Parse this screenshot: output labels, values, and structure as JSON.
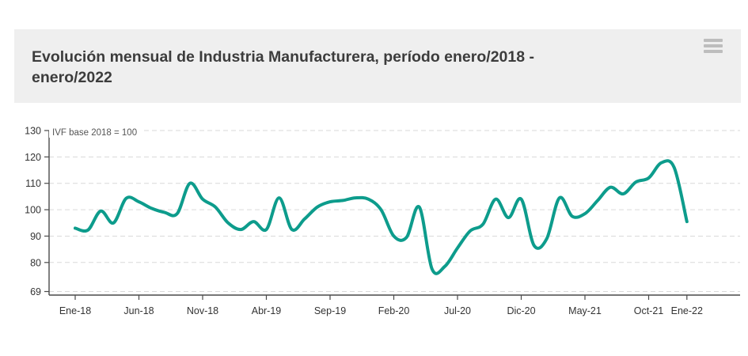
{
  "header": {
    "title_line1": "Evolución mensual de Industria Manufacturera, período enero/2018 -",
    "title_line2": "enero/2022",
    "background": "#efefef",
    "title_color": "#3c3c3c",
    "menu_icon": "hamburger-menu"
  },
  "chart_data": {
    "type": "line",
    "title": "Evolución mensual de Industria Manufacturera, período enero/2018 - enero/2022",
    "annotation": "IVF base 2018 = 100",
    "legend": "none",
    "grid": "horizontal-dashed",
    "ylim": [
      69,
      130
    ],
    "y_ticks": [
      69,
      80,
      90,
      100,
      110,
      120,
      130
    ],
    "x_tick_indices": [
      0,
      5,
      10,
      15,
      20,
      25,
      30,
      35,
      40,
      45,
      48
    ],
    "visible_x_tick_labels": [
      "Ene-18",
      "Jun-18",
      "Nov-18",
      "Abr-19",
      "Sep-19",
      "Feb-20",
      "Jul-20",
      "Dic-20",
      "May-21",
      "Oct-21",
      "Ene-22"
    ],
    "x": [
      "Ene-18",
      "Feb-18",
      "Mar-18",
      "Abr-18",
      "May-18",
      "Jun-18",
      "Jul-18",
      "Ago-18",
      "Sep-18",
      "Oct-18",
      "Nov-18",
      "Dic-18",
      "Ene-19",
      "Feb-19",
      "Mar-19",
      "Abr-19",
      "May-19",
      "Jun-19",
      "Jul-19",
      "Ago-19",
      "Sep-19",
      "Oct-19",
      "Nov-19",
      "Dic-19",
      "Ene-20",
      "Feb-20",
      "Mar-20",
      "Abr-20",
      "May-20",
      "Jun-20",
      "Jul-20",
      "Ago-20",
      "Sep-20",
      "Oct-20",
      "Nov-20",
      "Dic-20",
      "Ene-21",
      "Feb-21",
      "Mar-21",
      "Abr-21",
      "May-21",
      "Jun-21",
      "Jul-21",
      "Ago-21",
      "Sep-21",
      "Oct-21",
      "Nov-21",
      "Dic-21",
      "Ene-22"
    ],
    "series": [
      {
        "name": "IVF Industria Manufacturera",
        "color": "#0d9c8c",
        "values": [
          93,
          92.3,
          99.5,
          95,
          104.3,
          103,
          100.5,
          99,
          98.5,
          110,
          104,
          101,
          95,
          92.5,
          95.5,
          92.5,
          104.5,
          92.5,
          96.5,
          101,
          103,
          103.5,
          104.5,
          104,
          100,
          90,
          89.5,
          101,
          77.5,
          78.5,
          85.5,
          92,
          94.5,
          104,
          97,
          104,
          86.5,
          89,
          104.5,
          97.5,
          98.5,
          103.5,
          108.5,
          106,
          110.5,
          112,
          117.8,
          116,
          95.5
        ]
      }
    ]
  }
}
